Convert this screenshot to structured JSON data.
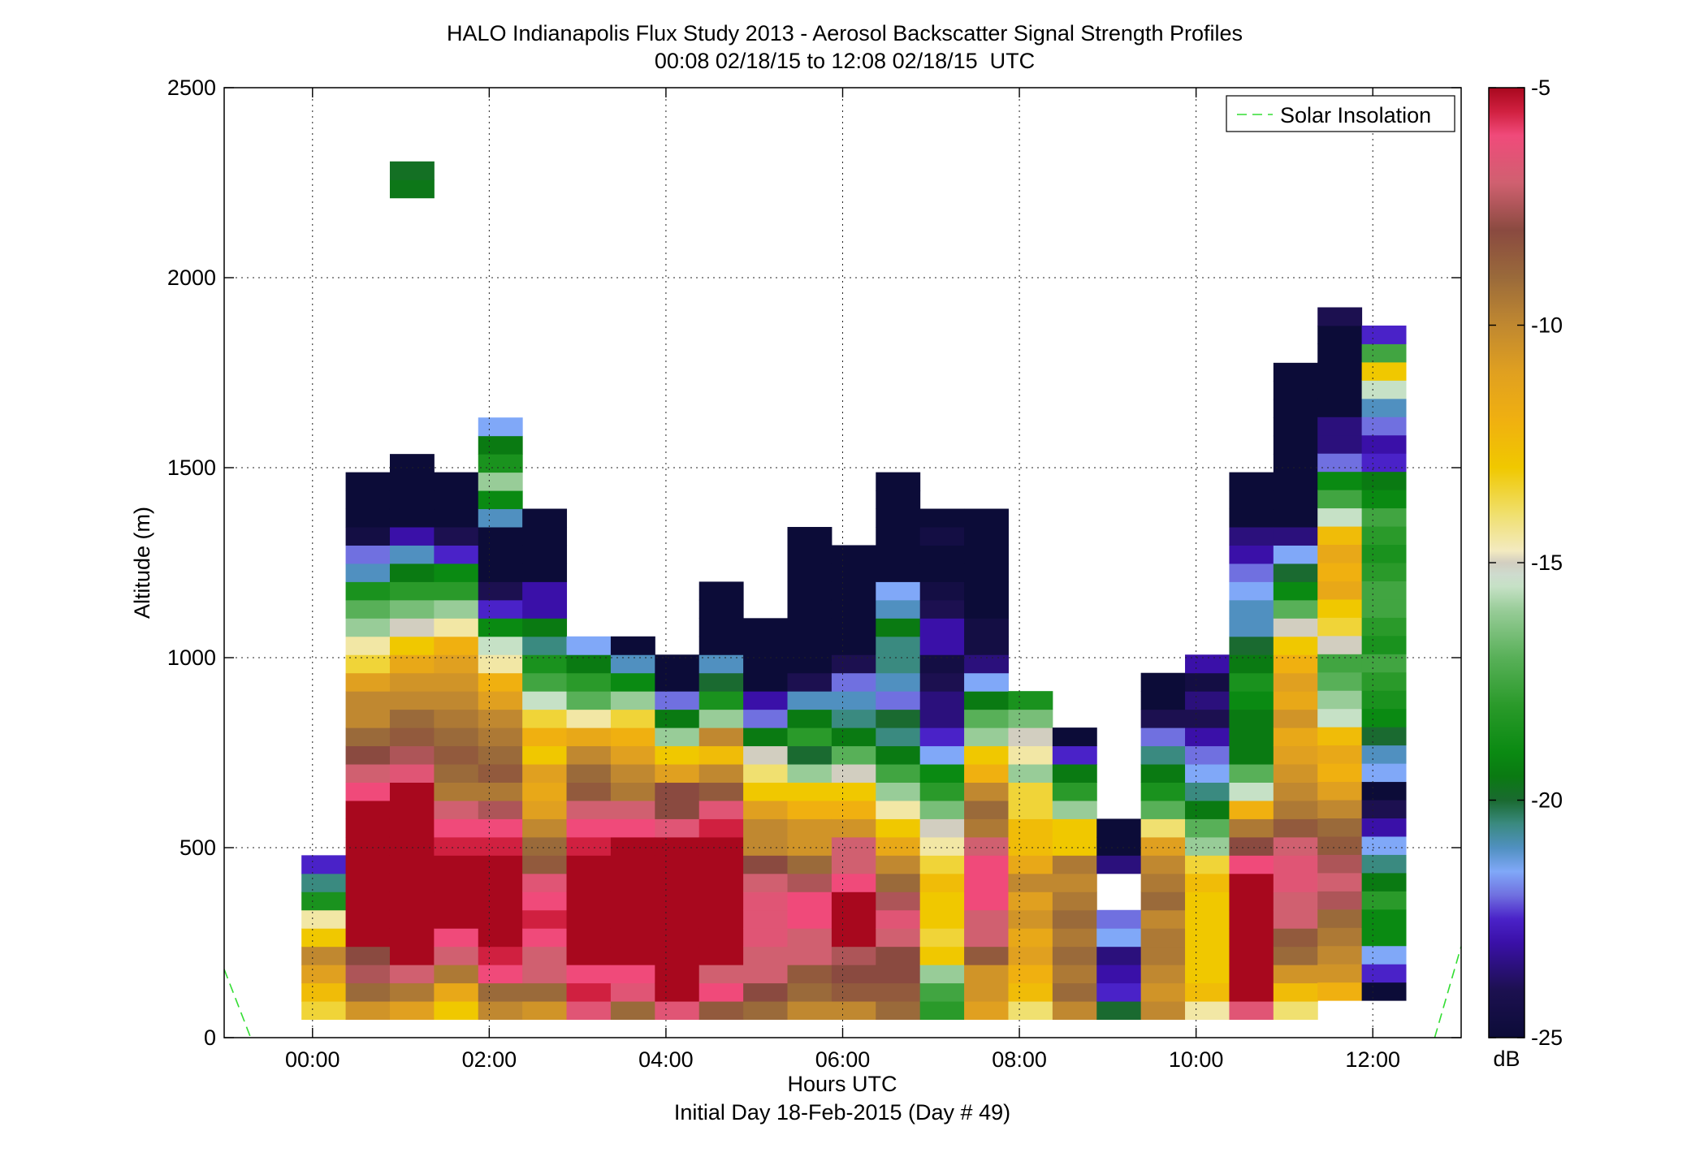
{
  "chart_data": {
    "type": "heatmap",
    "title": "HALO Indianapolis Flux Study 2013 - Aerosol Backscatter Signal Strength Profiles",
    "subtitle": "00:08 02/18/15 to 12:08 02/18/15  UTC",
    "xlabel": "Hours UTC",
    "xlabel2": "Initial Day 18-Feb-2015 (Day # 49)",
    "ylabel": "Altitude (m)",
    "xlim": [
      -1.0,
      13.0
    ],
    "ylim": [
      0,
      2500
    ],
    "x_ticks": [
      0,
      2,
      4,
      6,
      8,
      10,
      12
    ],
    "x_tick_labels": [
      "00:00",
      "02:00",
      "04:00",
      "06:00",
      "08:00",
      "10:00",
      "12:00"
    ],
    "y_ticks": [
      0,
      500,
      1000,
      1500,
      2000,
      2500
    ],
    "y_tick_labels": [
      "0",
      "500",
      "1000",
      "1500",
      "2000",
      "2500"
    ],
    "grid": true,
    "legend": {
      "position": "top-right",
      "entries": [
        {
          "name": "Solar Insolation",
          "color": "#33dd33",
          "style": "dashed"
        }
      ]
    },
    "colorbar": {
      "label": "dB",
      "range": [
        -25,
        -5
      ],
      "ticks": [
        -5,
        -10,
        -15,
        -20,
        -25
      ],
      "tick_labels": [
        "-5",
        "-10",
        "-15",
        "-20",
        "-25"
      ]
    },
    "profile_time_step_hours": 0.5,
    "bin_height_m": 48,
    "profiles": [
      {
        "t": 0.125,
        "base": 48,
        "db": [
          -13.5,
          -12.5,
          -11,
          -10,
          -13,
          -14.5,
          -18.5,
          -20.5,
          -22.5
        ]
      },
      {
        "t": 0.625,
        "base": 48,
        "db": [
          -10.5,
          -9,
          -7.5,
          -8,
          -5,
          -5,
          -5,
          -5,
          -5,
          -5,
          -5,
          -5,
          -6,
          -7,
          -8,
          -9,
          -10,
          -10,
          -11,
          -13.5,
          -14.5,
          -16,
          -17,
          -18.5,
          -21,
          -22,
          -24.5,
          -25,
          -25,
          -25
        ]
      },
      {
        "t": 1.125,
        "base": 48,
        "db": [
          -11,
          -9.5,
          -7,
          -5,
          -5,
          -5,
          -5,
          -5,
          -5,
          -5,
          -5,
          -5,
          -5,
          -6.5,
          -7.5,
          -8.5,
          -9,
          -10,
          -10.5,
          -11.5,
          -13,
          -15,
          -16.5,
          -18,
          -19.5,
          -21,
          -23,
          -25,
          -25,
          -25,
          -25
        ]
      },
      {
        "t": 1.125,
        "base": 2210,
        "db": [
          -19.6,
          -19.8
        ]
      },
      {
        "t": 1.625,
        "base": 48,
        "db": [
          -13,
          -11.5,
          -9.5,
          -7,
          -6,
          -5,
          -5,
          -5,
          -5,
          -5.5,
          -6,
          -7,
          -9.5,
          -9,
          -8.5,
          -9,
          -9.5,
          -10,
          -10.5,
          -11,
          -12,
          -14.5,
          -16,
          -18,
          -19,
          -22.5,
          -24,
          -25,
          -25,
          -25
        ]
      },
      {
        "t": 2.125,
        "base": 48,
        "db": [
          -10,
          -9,
          -6,
          -5.5,
          -5,
          -5,
          -5,
          -5,
          -5,
          -5.5,
          -6,
          -7.5,
          -9.5,
          -8.5,
          -9,
          -9.5,
          -10,
          -11,
          -12,
          -14.5,
          -15.5,
          -19,
          -22.5,
          -24,
          -25,
          -25,
          -25,
          -21,
          -19,
          -16,
          -18.5,
          -19.5,
          -21.5
        ]
      },
      {
        "t": 2.625,
        "base": 48,
        "db": [
          -10.5,
          -9,
          -7,
          -7,
          -6,
          -5.5,
          -6,
          -6.5,
          -8.5,
          -9,
          -10,
          -11,
          -11.5,
          -11,
          -13,
          -12,
          -13.5,
          -15.5,
          -17.5,
          -18.5,
          -20.5,
          -19.5,
          -23,
          -23,
          -25,
          -25,
          -25,
          -25
        ]
      },
      {
        "t": 3.125,
        "base": 48,
        "db": [
          -6.5,
          -5.5,
          -6,
          -5,
          -5,
          -5,
          -5,
          -5,
          -5,
          -5.5,
          -6,
          -7,
          -8.5,
          -9,
          -10,
          -11.5,
          -14.5,
          -17,
          -18,
          -19.5,
          -21.5
        ]
      },
      {
        "t": 3.625,
        "base": 48,
        "db": [
          -9,
          -6.5,
          -6,
          -5,
          -5,
          -5,
          -5,
          -5,
          -5,
          -5,
          -6,
          -7,
          -9.5,
          -10,
          -11,
          -12,
          -13.5,
          -16,
          -19,
          -21,
          -25
        ]
      },
      {
        "t": 4.125,
        "base": 48,
        "db": [
          -6.5,
          -5,
          -5,
          -5,
          -5,
          -5,
          -5,
          -5,
          -5,
          -5,
          -6.5,
          -8,
          -8,
          -11,
          -13,
          -16,
          -19.5,
          -22,
          -25,
          -25
        ]
      },
      {
        "t": 4.625,
        "base": 48,
        "db": [
          -8.5,
          -6,
          -7,
          -5,
          -5,
          -5,
          -5,
          -5,
          -5,
          -5,
          -5.5,
          -6.5,
          -8.5,
          -10,
          -12.5,
          -10,
          -16,
          -18.5,
          -20,
          -21,
          -25,
          -25,
          -25,
          -25
        ]
      },
      {
        "t": 5.125,
        "base": 48,
        "db": [
          -9,
          -8,
          -7,
          -7,
          -6.5,
          -6.5,
          -6.5,
          -7,
          -8,
          -10,
          -10,
          -11,
          -13,
          -14,
          -15,
          -19.5,
          -22,
          -23,
          -25,
          -25,
          -25,
          -25
        ]
      },
      {
        "t": 5.625,
        "base": 48,
        "db": [
          -10,
          -9,
          -8.5,
          -7,
          -7,
          -6,
          -6,
          -7.5,
          -9,
          -10.5,
          -10.5,
          -12,
          -13,
          -16,
          -20,
          -18,
          -19.5,
          -21,
          -24,
          -25,
          -25,
          -25,
          -25,
          -25,
          -25,
          -25,
          -25
        ]
      },
      {
        "t": 6.125,
        "base": 48,
        "db": [
          -10,
          -8.5,
          -8,
          -7.5,
          -5,
          -5,
          -5,
          -6,
          -7,
          -7,
          -10.5,
          -12,
          -13,
          -15,
          -17,
          -19.5,
          -20.5,
          -21,
          -22,
          -24,
          -25,
          -25,
          -25,
          -25,
          -25,
          -25
        ]
      },
      {
        "t": 6.625,
        "base": 48,
        "db": [
          -9,
          -8.5,
          -8,
          -8,
          -7,
          -6.5,
          -7.5,
          -9,
          -10,
          -11.5,
          -13,
          -14.5,
          -16,
          -17.5,
          -19.5,
          -20.5,
          -20,
          -22,
          -21,
          -20.5,
          -20.5,
          -19.5,
          -21,
          -21.5,
          -25,
          -25,
          -25,
          -25,
          -25,
          -25
        ]
      },
      {
        "t": 7.125,
        "base": 48,
        "db": [
          -18,
          -17.5,
          -16,
          -13,
          -13.5,
          -13,
          -13,
          -12.5,
          -13.5,
          -14.5,
          -15,
          -16.5,
          -18,
          -19,
          -21.5,
          -22.5,
          -23.5,
          -23.5,
          -24,
          -24.5,
          -23,
          -23,
          -24,
          -24.5,
          -25,
          -25,
          -24.5,
          -25
        ]
      },
      {
        "t": 7.625,
        "base": 48,
        "db": [
          -11,
          -10.5,
          -10.5,
          -8.5,
          -7,
          -7,
          -6,
          -6,
          -6,
          -7,
          -9.5,
          -9,
          -10,
          -12,
          -13,
          -16,
          -17,
          -19.5,
          -21.5,
          -23.5,
          -24.5,
          -24.5,
          -25,
          -25,
          -25,
          -25,
          -25,
          -25
        ]
      },
      {
        "t": 8.125,
        "base": 48,
        "db": [
          -14,
          -12.5,
          -12,
          -11,
          -11.5,
          -10.5,
          -11,
          -10,
          -11.5,
          -12.5,
          -12.5,
          -13.5,
          -13.5,
          -16,
          -14.5,
          -15,
          -16.5,
          -18.5
        ]
      },
      {
        "t": 8.625,
        "base": 48,
        "db": [
          -10,
          -9,
          -9.5,
          -9,
          -9.5,
          -9,
          -9.5,
          -10,
          -9.5,
          -13,
          -13,
          -16,
          -18,
          -19.5,
          -22.5,
          -25
        ]
      },
      {
        "t": 9.125,
        "base": 48,
        "db": [
          -20,
          -22.5,
          -23,
          -23.5,
          -21.5,
          -22,
          null,
          null,
          -23.5,
          -25,
          -25
        ]
      },
      {
        "t": 9.625,
        "base": 48,
        "db": [
          -10,
          -10.5,
          -10,
          -9.5,
          -9.5,
          -10,
          -9,
          -9.5,
          -10,
          -11,
          -14,
          -17,
          -18.5,
          -19.5,
          -20.5,
          -22,
          -24,
          -25,
          -25
        ]
      },
      {
        "t": 10.125,
        "base": 48,
        "db": [
          -14.5,
          -12.5,
          -13,
          -13,
          -13,
          -13,
          -13,
          -12.5,
          -13.5,
          -16,
          -17,
          -19.5,
          -20.5,
          -21.5,
          -22,
          -23,
          -24,
          -23.5,
          -24.5,
          -23
        ]
      },
      {
        "t": 10.625,
        "base": 48,
        "db": [
          -6.5,
          -5,
          -5,
          -5,
          -5,
          -5,
          -5,
          -5,
          -6,
          -8,
          -9.5,
          -12,
          -15.5,
          -17,
          -19.5,
          -19.5,
          -19.5,
          -19,
          -18.5,
          -19.5,
          -20,
          -21,
          -21,
          -21.5,
          -22,
          -23,
          -23.5,
          -25,
          -25,
          -25
        ]
      },
      {
        "t": 11.125,
        "base": 48,
        "db": [
          -14,
          -12.5,
          -10.5,
          -9,
          -8.5,
          -7,
          -7,
          -6.5,
          -6.5,
          -7,
          -8.5,
          -9.5,
          -10,
          -10.5,
          -11,
          -11.5,
          -10.5,
          -11.5,
          -11,
          -12,
          -13,
          -15,
          -17,
          -19,
          -20,
          -21.5,
          -23.5,
          -25,
          -25,
          -25,
          -25,
          -25,
          -25,
          -25,
          -25,
          -25
        ]
      },
      {
        "t": 11.625,
        "base": 98,
        "db": [
          -12,
          -10.5,
          -10,
          -9.5,
          -9,
          -7.5,
          -7,
          -7.5,
          -8.5,
          -9,
          -10,
          -11,
          -12,
          -11.5,
          -12.5,
          -15.5,
          -16,
          -17,
          -17.5,
          -15,
          -13.5,
          -13,
          -11.5,
          -12,
          -11.5,
          -12.5,
          -15.5,
          -17.5,
          -19,
          -22,
          -23.5,
          -23.5,
          -25,
          -25,
          -25,
          -25,
          -25,
          -24
        ]
      },
      {
        "t": 12.125,
        "base": 98,
        "db": [
          -25,
          -22.5,
          -21.5,
          -19,
          -19,
          -18,
          -19.5,
          -20.5,
          -21.5,
          -23,
          -24,
          -25,
          -21.5,
          -21,
          -20,
          -19,
          -18.5,
          -18,
          -17.5,
          -18.5,
          -18,
          -17.5,
          -17.5,
          -18,
          -18.5,
          -18,
          -17.5,
          -19,
          -19.5,
          -22.5,
          -23,
          -22,
          -21,
          -15.5,
          -13,
          -17.5,
          -22.5
        ]
      }
    ],
    "series": [
      {
        "name": "Solar Insolation",
        "x": [
          -1.0,
          -0.8,
          -0.7,
          12.7,
          12.85,
          13.0
        ],
        "y": [
          180,
          60,
          0,
          0,
          120,
          240
        ]
      }
    ]
  }
}
